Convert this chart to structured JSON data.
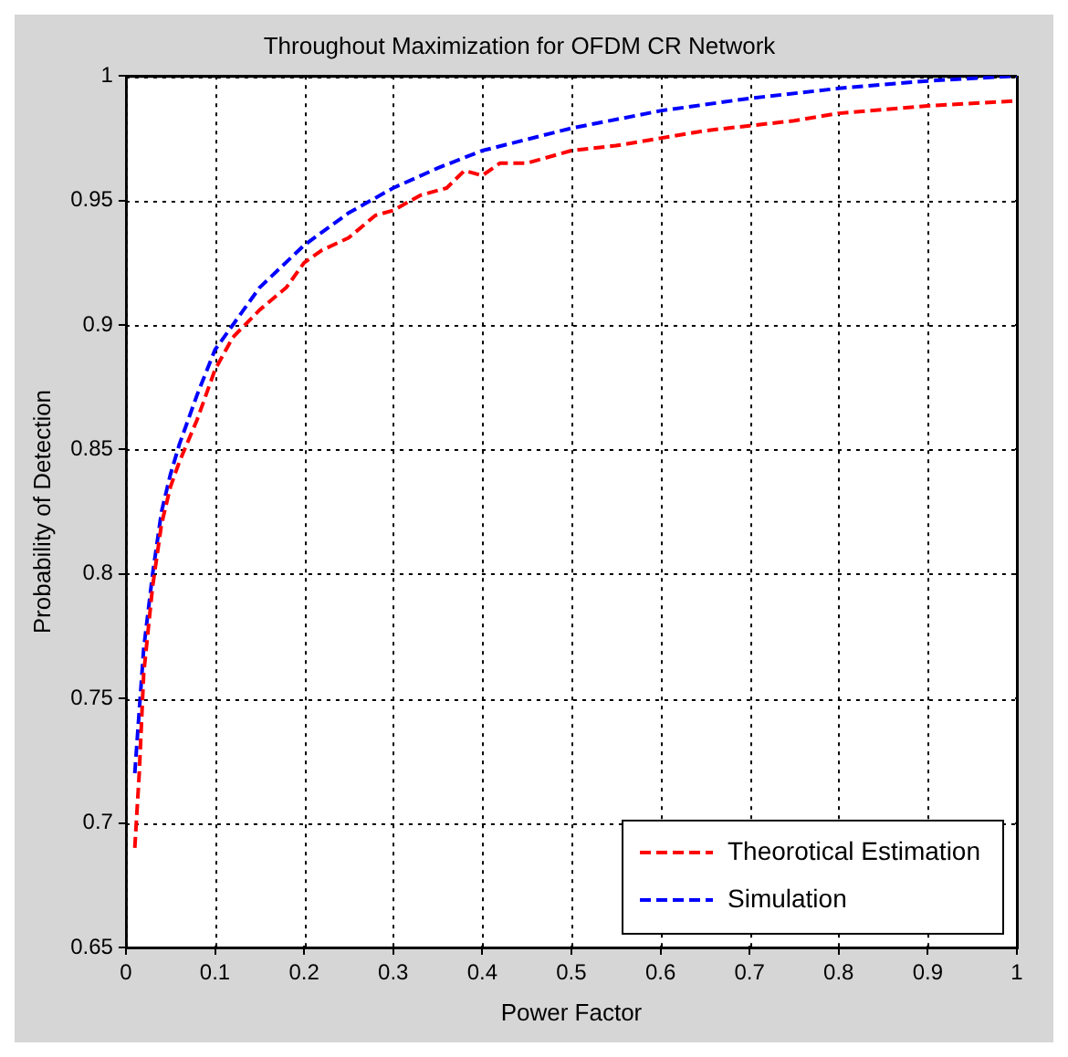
{
  "chart_data": {
    "type": "line",
    "title": "Throughout Maximization for OFDM CR Network",
    "xlabel": "Power Factor",
    "ylabel": "Probability of Detection",
    "xlim": [
      0,
      1
    ],
    "ylim": [
      0.65,
      1
    ],
    "xticks": [
      0,
      0.1,
      0.2,
      0.3,
      0.4,
      0.5,
      0.6,
      0.7,
      0.8,
      0.9,
      1
    ],
    "yticks": [
      0.65,
      0.7,
      0.75,
      0.8,
      0.85,
      0.9,
      0.95,
      1
    ],
    "grid": true,
    "legend": "bottom right",
    "line_style": "dashed",
    "marker": "none",
    "series": [
      {
        "name": "Theorotical Estimation",
        "color": "#ff0000",
        "x": [
          0.01,
          0.015,
          0.02,
          0.03,
          0.04,
          0.05,
          0.06,
          0.08,
          0.1,
          0.12,
          0.15,
          0.18,
          0.2,
          0.22,
          0.25,
          0.28,
          0.3,
          0.33,
          0.36,
          0.38,
          0.4,
          0.42,
          0.45,
          0.5,
          0.55,
          0.6,
          0.65,
          0.7,
          0.75,
          0.8,
          0.9,
          1
        ],
        "values": [
          0.69,
          0.72,
          0.76,
          0.795,
          0.82,
          0.835,
          0.845,
          0.862,
          0.882,
          0.895,
          0.906,
          0.915,
          0.925,
          0.93,
          0.935,
          0.944,
          0.946,
          0.952,
          0.955,
          0.962,
          0.96,
          0.965,
          0.965,
          0.97,
          0.972,
          0.975,
          0.978,
          0.98,
          0.982,
          0.985,
          0.988,
          0.99
        ]
      },
      {
        "name": "Simulation",
        "color": "#0000ff",
        "x": [
          0.01,
          0.02,
          0.03,
          0.04,
          0.05,
          0.06,
          0.08,
          0.1,
          0.15,
          0.2,
          0.25,
          0.3,
          0.35,
          0.4,
          0.5,
          0.6,
          0.7,
          0.8,
          0.9,
          1
        ],
        "values": [
          0.72,
          0.77,
          0.8,
          0.825,
          0.84,
          0.852,
          0.872,
          0.89,
          0.915,
          0.932,
          0.945,
          0.955,
          0.963,
          0.97,
          0.979,
          0.986,
          0.991,
          0.995,
          0.998,
          1
        ]
      }
    ]
  }
}
